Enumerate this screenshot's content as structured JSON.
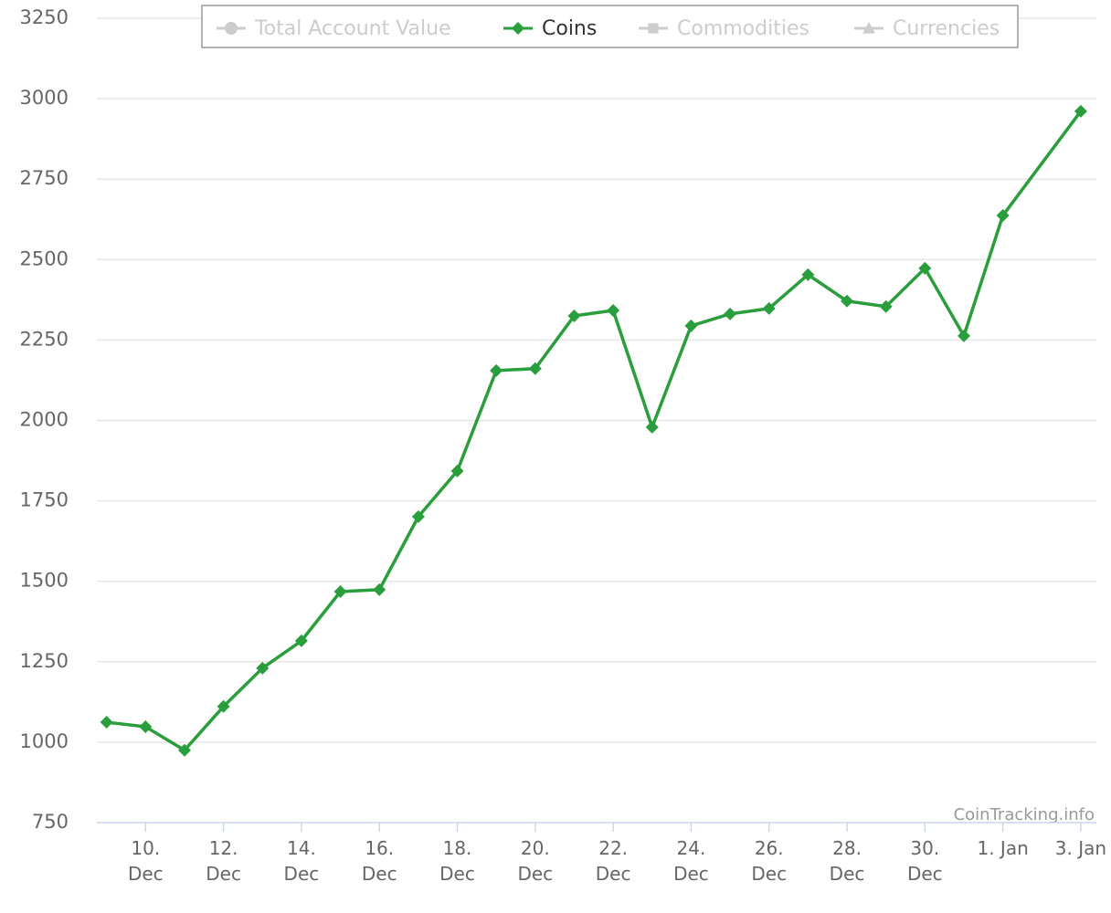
{
  "chart_data": {
    "type": "line",
    "x": [
      9,
      10,
      11,
      12,
      13,
      14,
      15,
      16,
      17,
      18,
      19,
      20,
      21,
      22,
      23,
      24,
      25,
      26,
      27,
      28,
      29,
      30,
      31,
      32,
      34
    ],
    "series": [
      {
        "name": "Total Account Value",
        "color": "#cccccc",
        "marker": "circle",
        "visible": false
      },
      {
        "name": "Coins",
        "color": "#2a9d3c",
        "marker": "diamond",
        "visible": true,
        "values": [
          1062,
          1048,
          975,
          1111,
          1230,
          1315,
          1468,
          1474,
          1701,
          1843,
          2155,
          2161,
          2325,
          2342,
          1979,
          2294,
          2331,
          2348,
          2453,
          2371,
          2354,
          2473,
          2263,
          2637,
          2961
        ]
      },
      {
        "name": "Commodities",
        "color": "#cccccc",
        "marker": "square",
        "visible": false
      },
      {
        "name": "Currencies",
        "color": "#cccccc",
        "marker": "triangle",
        "visible": false
      }
    ],
    "xlim": [
      8.75,
      34.4
    ],
    "xticks": [
      {
        "value": 10,
        "label": "10. Dec"
      },
      {
        "value": 12,
        "label": "12. Dec"
      },
      {
        "value": 14,
        "label": "14. Dec"
      },
      {
        "value": 16,
        "label": "16. Dec"
      },
      {
        "value": 18,
        "label": "18. Dec"
      },
      {
        "value": 20,
        "label": "20. Dec"
      },
      {
        "value": 22,
        "label": "22. Dec"
      },
      {
        "value": 24,
        "label": "24. Dec"
      },
      {
        "value": 26,
        "label": "26. Dec"
      },
      {
        "value": 28,
        "label": "28. Dec"
      },
      {
        "value": 30,
        "label": "30. Dec"
      },
      {
        "value": 32,
        "label": "1. Jan"
      },
      {
        "value": 34,
        "label": "3. Jan"
      }
    ],
    "ylim": [
      750,
      3250
    ],
    "yticks": [
      750,
      1000,
      1250,
      1500,
      1750,
      2000,
      2250,
      2500,
      2750,
      3000,
      3250
    ],
    "grid": true,
    "legend": "top",
    "credits": "CoinTracking.info"
  }
}
